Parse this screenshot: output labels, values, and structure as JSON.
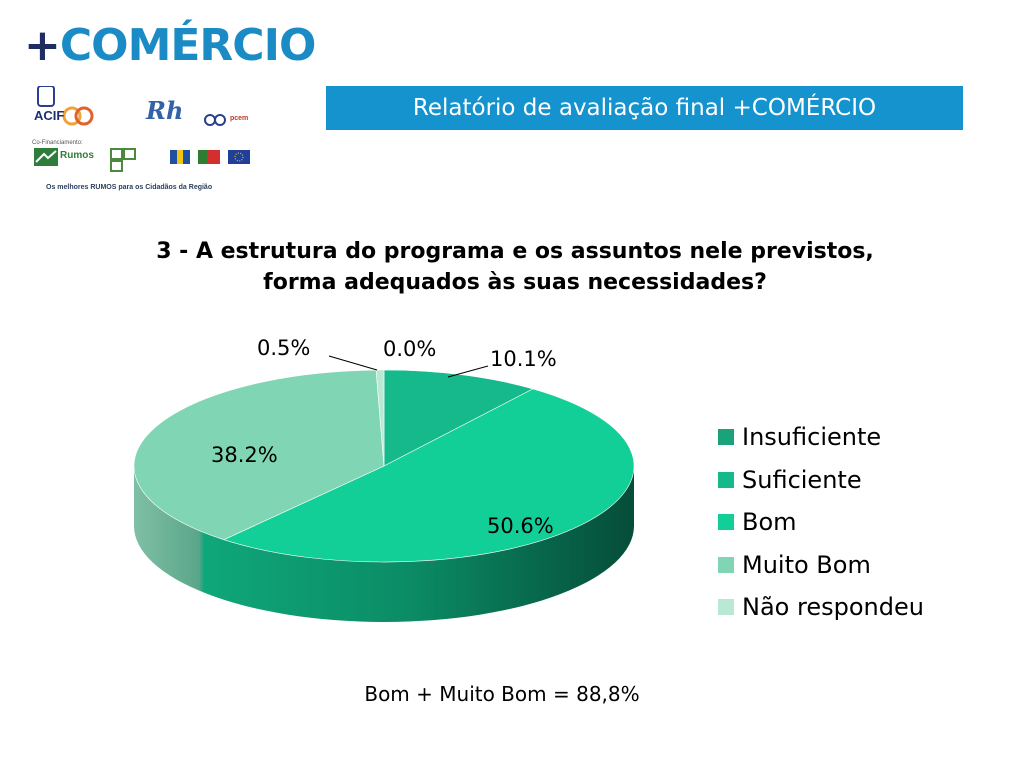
{
  "header": {
    "brand_plus": "+",
    "brand_word": "COMÉRCIO",
    "banner_title": "Relatório de avaliação final +COMÉRCIO"
  },
  "logos": {
    "acif": "ACIF",
    "rh": "Rh",
    "pcem": "pcem",
    "cofinanciamento": "Co-Financiamento:",
    "rumos": "Rumos",
    "tagline": "Os melhores RUMOS para os Cidadãos da Região"
  },
  "chart_data": {
    "type": "pie",
    "title": "3 - A estrutura do programa e os assuntos nele previstos, forma adequados às suas necessidades?",
    "slices": [
      {
        "label": "Insuficiente",
        "value": 0.0,
        "display": "0.0%",
        "color": "#1aa37a"
      },
      {
        "label": "Suficiente",
        "value": 10.1,
        "display": "10.1%",
        "color": "#16b98c"
      },
      {
        "label": "Bom",
        "value": 50.6,
        "display": "50.6%",
        "color": "#12cf97"
      },
      {
        "label": "Muito Bom",
        "value": 38.2,
        "display": "38.2%",
        "color": "#80d6b4"
      },
      {
        "label": "Não respondeu",
        "value": 0.5,
        "display": "0.5%",
        "color": "#b9e8d4"
      }
    ],
    "legend_position": "right",
    "three_d": true
  },
  "legend": [
    {
      "label": "Insuficiente",
      "color": "#1aa37a"
    },
    {
      "label": "Suficiente",
      "color": "#16b98c"
    },
    {
      "label": "Bom",
      "color": "#12cf97"
    },
    {
      "label": "Muito Bom",
      "color": "#80d6b4"
    },
    {
      "label": "Não respondeu",
      "color": "#b9e8d4"
    }
  ],
  "footer": {
    "note": "Bom + Muito Bom = 88,8%"
  }
}
